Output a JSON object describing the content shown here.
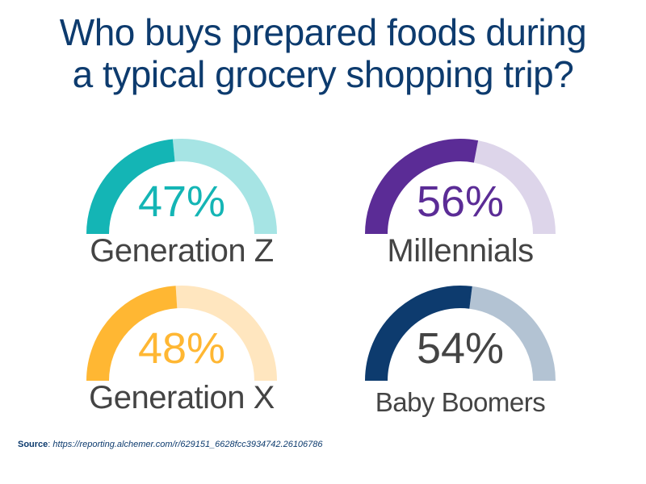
{
  "title": {
    "line1": "Who buys prepared foods during",
    "line2": "a typical grocery shopping trip?"
  },
  "chart_data": {
    "type": "gauge",
    "unit": "%",
    "max": 100,
    "items": [
      {
        "label": "Generation Z",
        "value": 47,
        "display": "47%",
        "color": "#14b5b5",
        "track": "#a6e4e4",
        "text_color": "#14b5b5"
      },
      {
        "label": "Millennials",
        "value": 56,
        "display": "56%",
        "color": "#5b2c96",
        "track": "#ddd5ea",
        "text_color": "#5b2c96"
      },
      {
        "label": "Generation X",
        "value": 48,
        "display": "48%",
        "color": "#ffb733",
        "track": "#ffe6bf",
        "text_color": "#ffb733"
      },
      {
        "label": "Baby Boomers",
        "value": 54,
        "display": "54%",
        "color": "#0d3b6e",
        "track": "#b3c3d3",
        "text_color": "#444444"
      }
    ]
  },
  "source": {
    "prefix": "Source",
    "separator": ": ",
    "url": "https://reporting.alchemer.com/r/629151_6628fcc3934742.26106786"
  }
}
